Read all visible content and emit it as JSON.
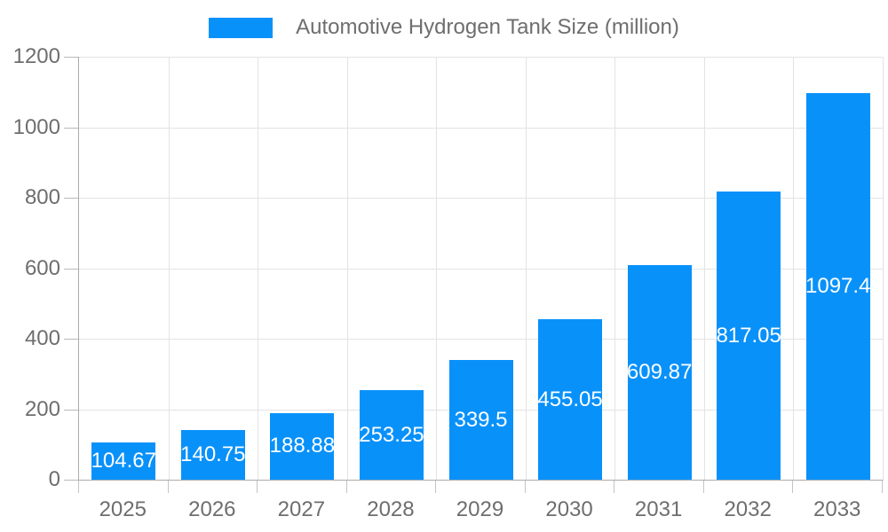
{
  "legend": {
    "series_label": "Automotive Hydrogen Tank Size (million)"
  },
  "chart_data": {
    "type": "bar",
    "title": "Automotive Hydrogen Tank Size (million)",
    "categories": [
      "2025",
      "2026",
      "2027",
      "2028",
      "2029",
      "2030",
      "2031",
      "2032",
      "2033"
    ],
    "values": [
      104.67,
      140.75,
      188.88,
      253.25,
      339.5,
      455.05,
      609.87,
      817.05,
      1097.4
    ],
    "value_labels": [
      "104.67",
      "140.75",
      "188.88",
      "253.25",
      "339.5",
      "455.05",
      "609.87",
      "817.05",
      "1097.4"
    ],
    "xlabel": "",
    "ylabel": "",
    "ylim": [
      0,
      1200
    ],
    "yticks": [
      0,
      200,
      400,
      600,
      800,
      1000,
      1200
    ],
    "grid": true,
    "legend_position": "top",
    "colors": {
      "bar": "#0991fa",
      "value_label": "#ffffff",
      "tick_text": "#6e6e6e",
      "gridline": "#e3e3e3",
      "axis_line": "#ababab",
      "background": "#ffffff"
    }
  }
}
